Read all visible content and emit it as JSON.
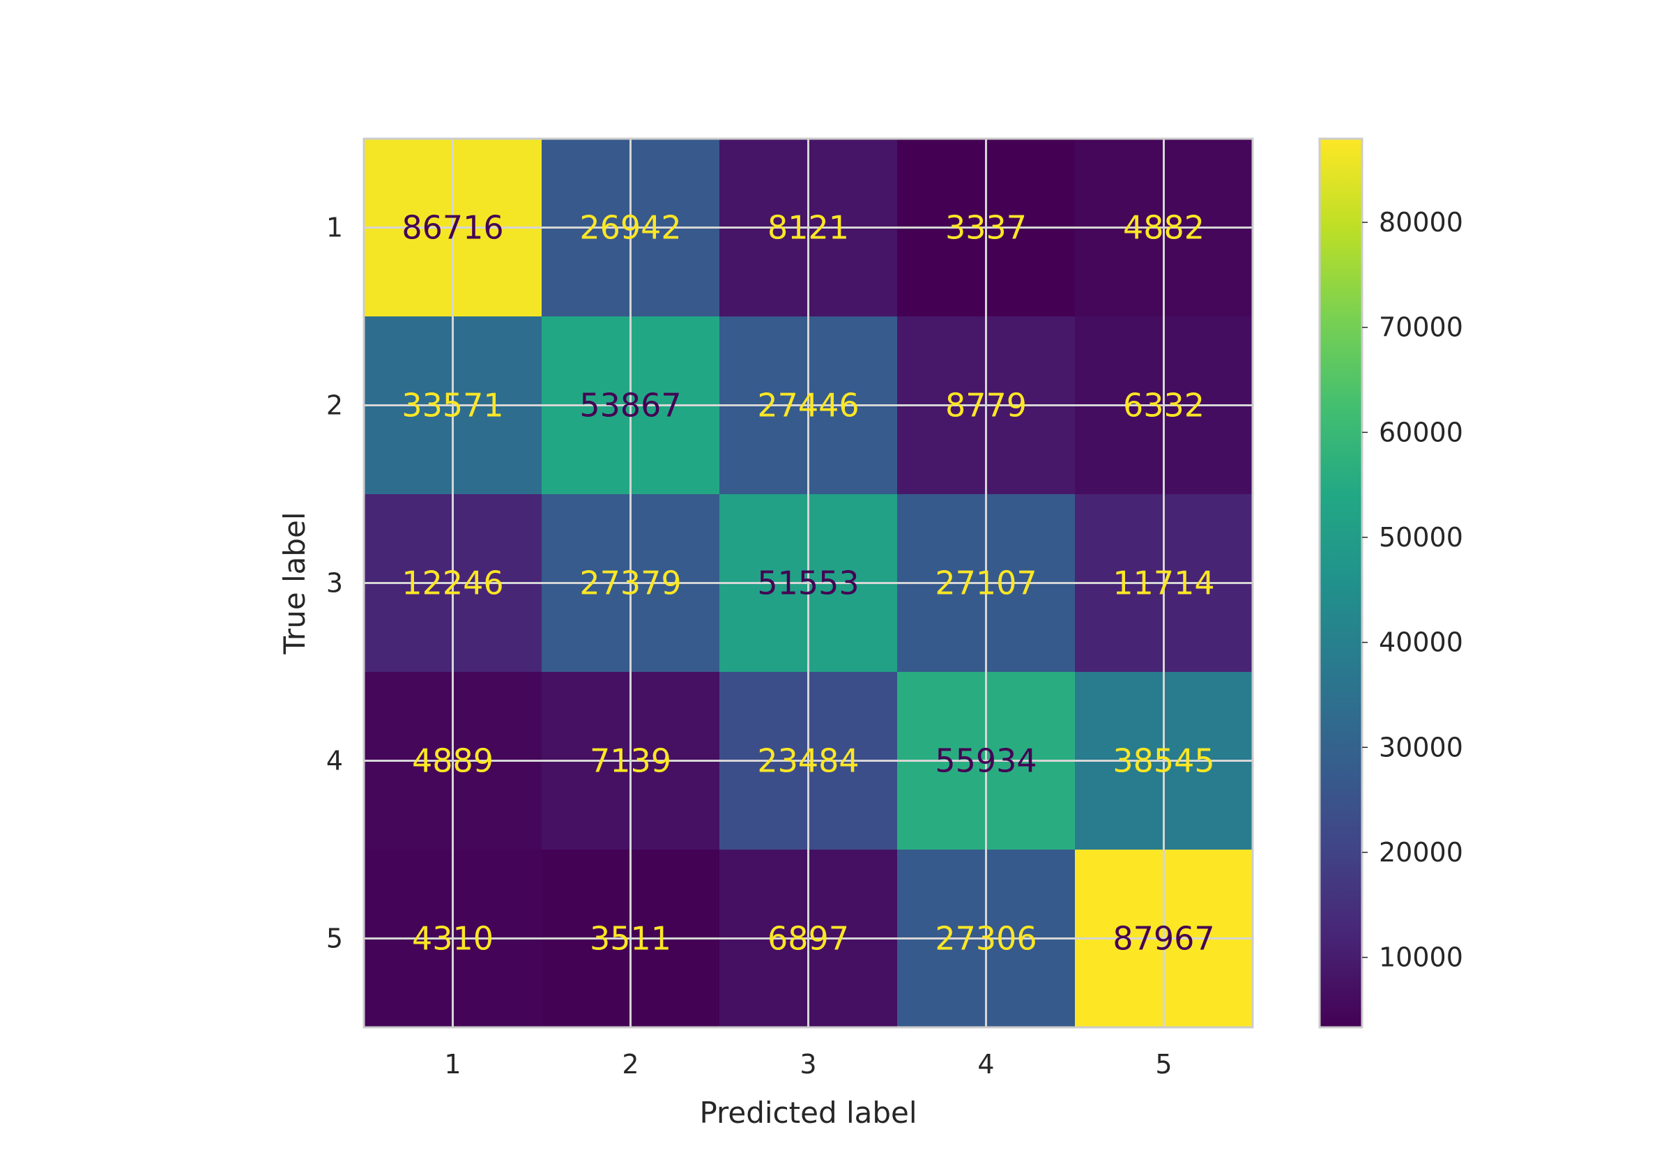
{
  "chart_data": {
    "type": "heatmap",
    "title": "",
    "xlabel": "Predicted label",
    "ylabel": "True label",
    "x_categories": [
      "1",
      "2",
      "3",
      "4",
      "5"
    ],
    "y_categories": [
      "1",
      "2",
      "3",
      "4",
      "5"
    ],
    "values": [
      [
        86716,
        26942,
        8121,
        3337,
        4882
      ],
      [
        33571,
        53867,
        27446,
        8779,
        6332
      ],
      [
        12246,
        27379,
        51553,
        27107,
        11714
      ],
      [
        4889,
        7139,
        23484,
        55934,
        38545
      ],
      [
        4310,
        3511,
        6897,
        27306,
        87967
      ]
    ],
    "colormap": "viridis",
    "colorbar": {
      "range": [
        3337,
        87967
      ],
      "ticks": [
        10000,
        20000,
        30000,
        40000,
        50000,
        60000,
        70000,
        80000
      ],
      "tick_labels": [
        "10000",
        "20000",
        "30000",
        "40000",
        "50000",
        "60000",
        "70000",
        "80000"
      ]
    },
    "grid": true,
    "text_colors": {
      "dark": "#440154",
      "light": "#fde725"
    }
  }
}
